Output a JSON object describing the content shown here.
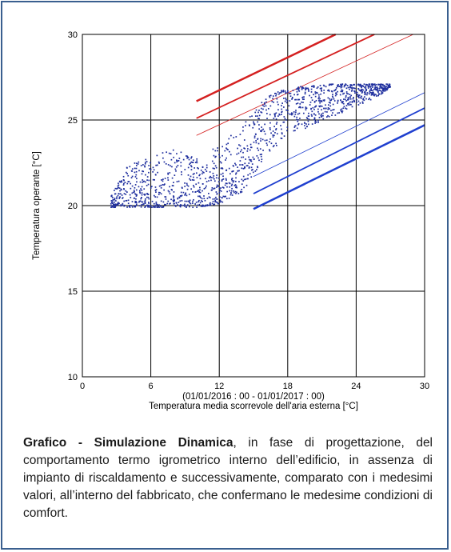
{
  "chart_data": {
    "type": "scatter",
    "title": "",
    "xlabel_line1": "(01/01/2016 : 00 - 01/01/2017 : 00)",
    "xlabel": "Temperatura media scorrevole dell'aria esterna [°C]",
    "ylabel": "Temperatura operante [°C]",
    "xlim": [
      0,
      30
    ],
    "ylim": [
      10,
      30
    ],
    "xticks": [
      "0",
      "6",
      "12",
      "18",
      "24",
      "30"
    ],
    "yticks": [
      "10",
      "15",
      "20",
      "25",
      "30"
    ],
    "grid": true,
    "colors": {
      "scatter": "#1f2f9e",
      "upper_limits": "#d42020",
      "lower_limits": "#1f3fcf"
    },
    "comfort_lines": [
      {
        "series": "upper-1",
        "color": "#d42020",
        "width": 2.5,
        "x": [
          10,
          22.2
        ],
        "y": [
          26.1,
          30
        ]
      },
      {
        "series": "upper-2",
        "color": "#d42020",
        "width": 1.8,
        "x": [
          10,
          25.6
        ],
        "y": [
          25.1,
          30
        ]
      },
      {
        "series": "upper-3",
        "color": "#d42020",
        "width": 0.8,
        "x": [
          10,
          29
        ],
        "y": [
          24.1,
          30
        ]
      },
      {
        "series": "lower-1",
        "color": "#1f3fcf",
        "width": 0.8,
        "x": [
          15,
          30
        ],
        "y": [
          21.7,
          26.6
        ]
      },
      {
        "series": "lower-2",
        "color": "#1f3fcf",
        "width": 1.8,
        "x": [
          15,
          30
        ],
        "y": [
          20.7,
          25.7
        ]
      },
      {
        "series": "lower-3",
        "color": "#1f3fcf",
        "width": 2.5,
        "x": [
          15,
          30
        ],
        "y": [
          19.8,
          24.7
        ]
      }
    ],
    "scatter_envelope": [
      {
        "x": 2.5,
        "y_min": 19.9,
        "y_max": 20.6
      },
      {
        "x": 4,
        "y_min": 19.9,
        "y_max": 22.4
      },
      {
        "x": 6,
        "y_min": 19.9,
        "y_max": 22.9
      },
      {
        "x": 8,
        "y_min": 19.9,
        "y_max": 23.3
      },
      {
        "x": 10,
        "y_min": 19.9,
        "y_max": 22.8
      },
      {
        "x": 12,
        "y_min": 20.1,
        "y_max": 23.5
      },
      {
        "x": 14,
        "y_min": 20.8,
        "y_max": 24.7
      },
      {
        "x": 16,
        "y_min": 22.7,
        "y_max": 26.3
      },
      {
        "x": 18,
        "y_min": 24.0,
        "y_max": 26.9
      },
      {
        "x": 20,
        "y_min": 24.6,
        "y_max": 27.0
      },
      {
        "x": 22,
        "y_min": 25.2,
        "y_max": 27.1
      },
      {
        "x": 24,
        "y_min": 25.8,
        "y_max": 27.1
      },
      {
        "x": 26,
        "y_min": 26.4,
        "y_max": 27.1
      },
      {
        "x": 27,
        "y_min": 26.9,
        "y_max": 27.1
      }
    ],
    "point_count": 1500
  },
  "caption": {
    "bold": "Grafico - Simulazione Dinamica",
    "text": ", in fase di progettazione, del comportamento termo igrometrico interno dell’edificio, in assenza di impianto di riscaldamento e successivamente, comparato con i medesimi valori, all’interno del fabbricato, che confermano le medesime condizioni di comfort."
  }
}
